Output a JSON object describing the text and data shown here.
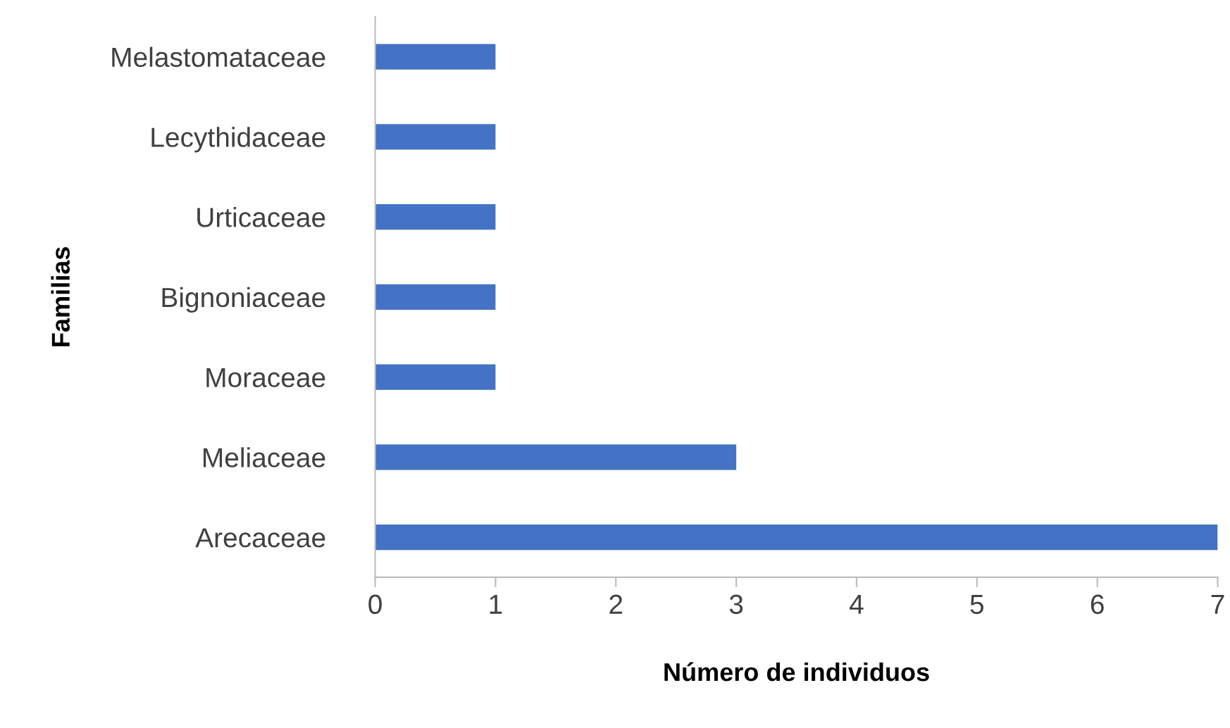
{
  "chart_data": {
    "type": "bar",
    "orientation": "horizontal",
    "categories": [
      "Melastomataceae",
      "Lecythidaceae",
      "Urticaceae",
      "Bignoniaceae",
      "Moraceae",
      "Meliaceae",
      "Arecaceae"
    ],
    "values": [
      1,
      1,
      1,
      1,
      1,
      3,
      7
    ],
    "color": "#4472c4",
    "xlabel": "Número de individuos",
    "ylabel": "Familias",
    "xlim": [
      0,
      7
    ],
    "xticks": [
      0,
      1,
      2,
      3,
      4,
      5,
      6,
      7
    ],
    "grid": false,
    "legend": false
  }
}
